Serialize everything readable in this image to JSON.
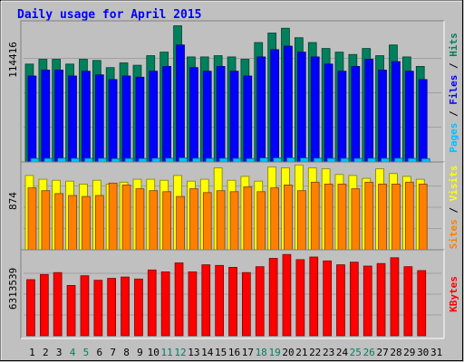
{
  "chart_data": {
    "type": "bar",
    "title": "Daily usage for April 2015",
    "categories": [
      "1",
      "2",
      "3",
      "4",
      "5",
      "6",
      "7",
      "8",
      "9",
      "10",
      "11",
      "12",
      "13",
      "14",
      "15",
      "16",
      "17",
      "18",
      "19",
      "20",
      "21",
      "22",
      "23",
      "24",
      "25",
      "26",
      "27",
      "28",
      "29",
      "30",
      "31"
    ],
    "weekend_days": [
      "4",
      "5",
      "11",
      "12",
      "18",
      "19",
      "25",
      "26"
    ],
    "ymax_labels": {
      "hits": "114416",
      "visits": "874",
      "kbytes": "6313539"
    },
    "panels": [
      {
        "id": "hits",
        "ymax": 114416,
        "side_labels": [
          "Pages",
          "Files",
          "Hits"
        ],
        "series": [
          {
            "name": "Hits",
            "color": "#00805c",
            "values": [
              82000,
              86000,
              86000,
              82000,
              86000,
              85000,
              79000,
              83000,
              81000,
              89000,
              92000,
              114000,
              88000,
              88000,
              89000,
              88000,
              86000,
              100000,
              108000,
              112000,
              104000,
              100000,
              95000,
              92000,
              90000,
              95000,
              89000,
              98000,
              88000,
              80000,
              0
            ]
          },
          {
            "name": "Files",
            "color": "#0000ff",
            "values": [
              72000,
              77000,
              77000,
              72000,
              76000,
              73000,
              69000,
              72000,
              71000,
              76000,
              80000,
              98000,
              79000,
              76000,
              80000,
              76000,
              72000,
              88000,
              94000,
              97000,
              92000,
              88000,
              82000,
              76000,
              80000,
              86000,
              77000,
              84000,
              76000,
              69000,
              0
            ]
          },
          {
            "name": "Pages",
            "color": "#00c0ff",
            "values": [
              3000,
              3000,
              3200,
              3000,
              3100,
              3000,
              2800,
              3000,
              2900,
              3100,
              3200,
              3500,
              3100,
              3000,
              3100,
              3000,
              2900,
              3300,
              3400,
              3500,
              3300,
              3200,
              3100,
              3000,
              3000,
              3100,
              3000,
              3200,
              3000,
              2800,
              0
            ]
          }
        ]
      },
      {
        "id": "visits",
        "ymax": 874,
        "side_labels": [
          "Sites",
          "Visits"
        ],
        "series": [
          {
            "name": "Visits",
            "color": "#ffff00",
            "values": [
              780,
              740,
              730,
              720,
              690,
              730,
              690,
              710,
              740,
              740,
              730,
              780,
              720,
              740,
              860,
              730,
              770,
              720,
              870,
              860,
              890,
              860,
              850,
              790,
              780,
              750,
              850,
              800,
              770,
              740,
              0
            ]
          },
          {
            "name": "Sites",
            "color": "#ff8000",
            "values": [
              650,
              620,
              590,
              570,
              560,
              570,
              700,
              680,
              640,
              620,
              610,
              560,
              640,
              600,
              620,
              610,
              660,
              610,
              650,
              680,
              620,
              710,
              690,
              690,
              640,
              710,
              690,
              690,
              710,
              690,
              0
            ]
          }
        ]
      },
      {
        "id": "kbytes",
        "ymax": 6313539,
        "side_labels": [
          "KBytes"
        ],
        "series": [
          {
            "name": "KBytes",
            "color": "#ff0000",
            "values": [
              4350000,
              4750000,
              4900000,
              3900000,
              4650000,
              4300000,
              4450000,
              4550000,
              4400000,
              5100000,
              4950000,
              5650000,
              4950000,
              5500000,
              5450000,
              5300000,
              4900000,
              5350000,
              6000000,
              6300000,
              5900000,
              6100000,
              5800000,
              5500000,
              5700000,
              5400000,
              5600000,
              6050000,
              5350000,
              5050000,
              0
            ]
          }
        ]
      }
    ],
    "colors": {
      "background": "#c0c0c0",
      "title": "#0000ff",
      "weekday_label": "#000000",
      "weekend_label": "#00805c"
    }
  }
}
